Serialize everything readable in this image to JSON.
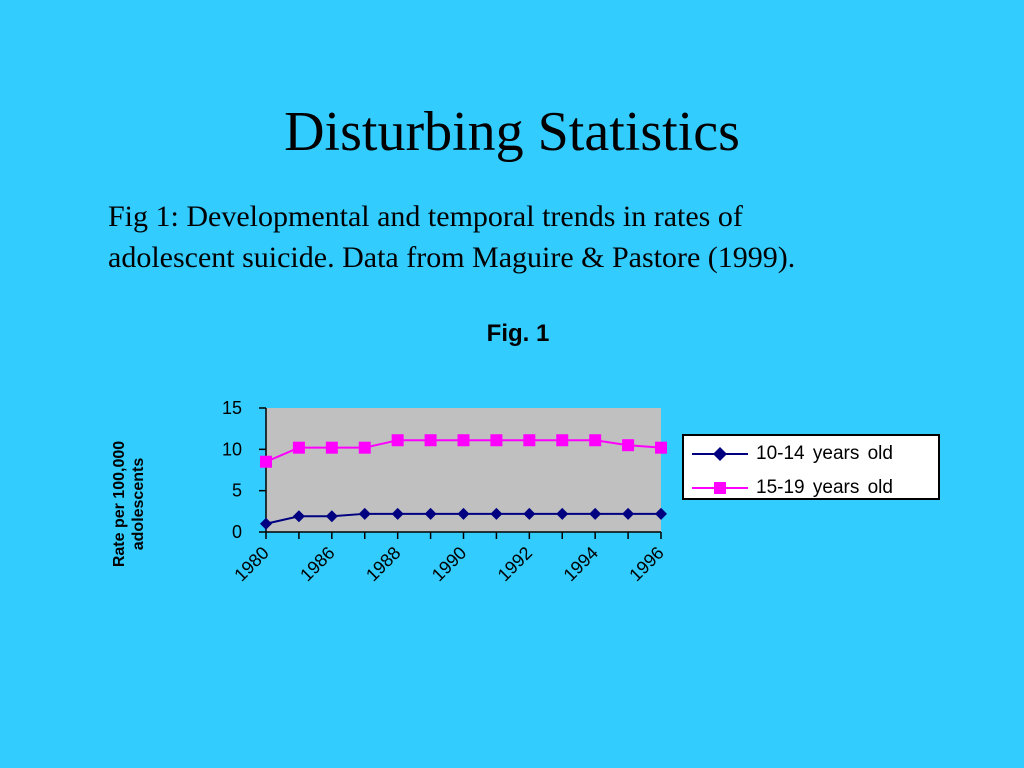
{
  "slide": {
    "title": "Disturbing Statistics",
    "caption_line1": "Fig 1: Developmental and temporal trends in rates of",
    "caption_line2": "adolescent suicide. Data from Maguire & Pastore (1999)."
  },
  "colors": {
    "background": "#33ccff",
    "plot_area": "#c0c0c0",
    "series_10_14": "#000080",
    "series_15_19": "#ff00ff"
  },
  "chart_data": {
    "type": "line",
    "title": "Fig. 1",
    "xlabel": "",
    "ylabel_line1": "Rate per 100,000",
    "ylabel_line2": "adolescents",
    "ylim": [
      0,
      15
    ],
    "yticks": [
      "0",
      "5",
      "10",
      "15"
    ],
    "x_tick_labels": [
      "1980",
      "1986",
      "1988",
      "1990",
      "1992",
      "1994",
      "1996"
    ],
    "x_point_count": 13,
    "legend_position": "right",
    "grid": false,
    "series": [
      {
        "name": "10-14 years old",
        "marker": "diamond",
        "values": [
          1.0,
          1.9,
          1.9,
          2.2,
          2.2,
          2.2,
          2.2,
          2.2,
          2.2,
          2.2,
          2.2,
          2.2,
          2.2
        ]
      },
      {
        "name": "15-19 years old",
        "marker": "square",
        "values": [
          8.5,
          10.2,
          10.2,
          10.2,
          11.1,
          11.1,
          11.1,
          11.1,
          11.1,
          11.1,
          11.1,
          10.5,
          10.2
        ]
      }
    ]
  }
}
